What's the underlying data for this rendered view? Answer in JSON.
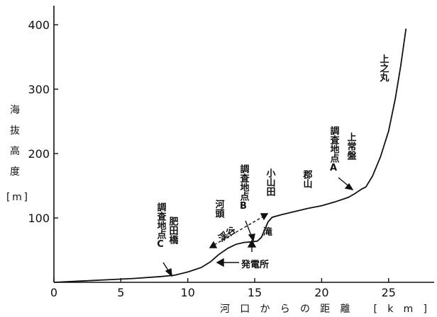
{
  "chart_data": {
    "type": "line",
    "title": "",
    "xlabel": "河口からの距離 [km]",
    "ylabel_lines": [
      "海",
      "抜",
      "高",
      "度",
      "[m]"
    ],
    "xlim": [
      0,
      30
    ],
    "ylim": [
      0,
      420
    ],
    "x_ticks": [
      0,
      5,
      10,
      15,
      20,
      25
    ],
    "y_ticks": [
      100,
      200,
      300,
      400
    ],
    "grid": false,
    "series": [
      {
        "x": [
          0,
          2,
          4,
          6,
          8,
          9,
          10,
          11,
          11.7,
          12.3,
          13.0,
          13.6,
          14.2,
          14.8,
          15.2,
          15.5,
          15.75,
          16.0,
          16.3,
          17,
          18,
          19,
          20,
          21,
          22,
          22.5,
          23.0,
          23.3,
          23.8,
          24.4,
          25.0,
          25.5,
          25.9,
          26.3
        ],
        "y": [
          0,
          2,
          4,
          6,
          9,
          11,
          16,
          23,
          32,
          43,
          53,
          59,
          62,
          63,
          64,
          70,
          82,
          94,
          101,
          105,
          110,
          115,
          119,
          125,
          132,
          138,
          145,
          148,
          165,
          195,
          235,
          285,
          335,
          394
        ]
      }
    ],
    "annotations": {
      "kamino_maru": "上之丸",
      "kami_tokiwa": "上常盤",
      "site_a": "調査地点A",
      "koriyama": "郡山",
      "koyamada": "小山田",
      "site_b": "調査地点B",
      "kawazu": "河頭",
      "keikoku": "渓谷",
      "taki": "滝",
      "hatsudensho": "発電所",
      "site_c": "調査地点C",
      "higo_bashi": "肥田橋"
    }
  }
}
